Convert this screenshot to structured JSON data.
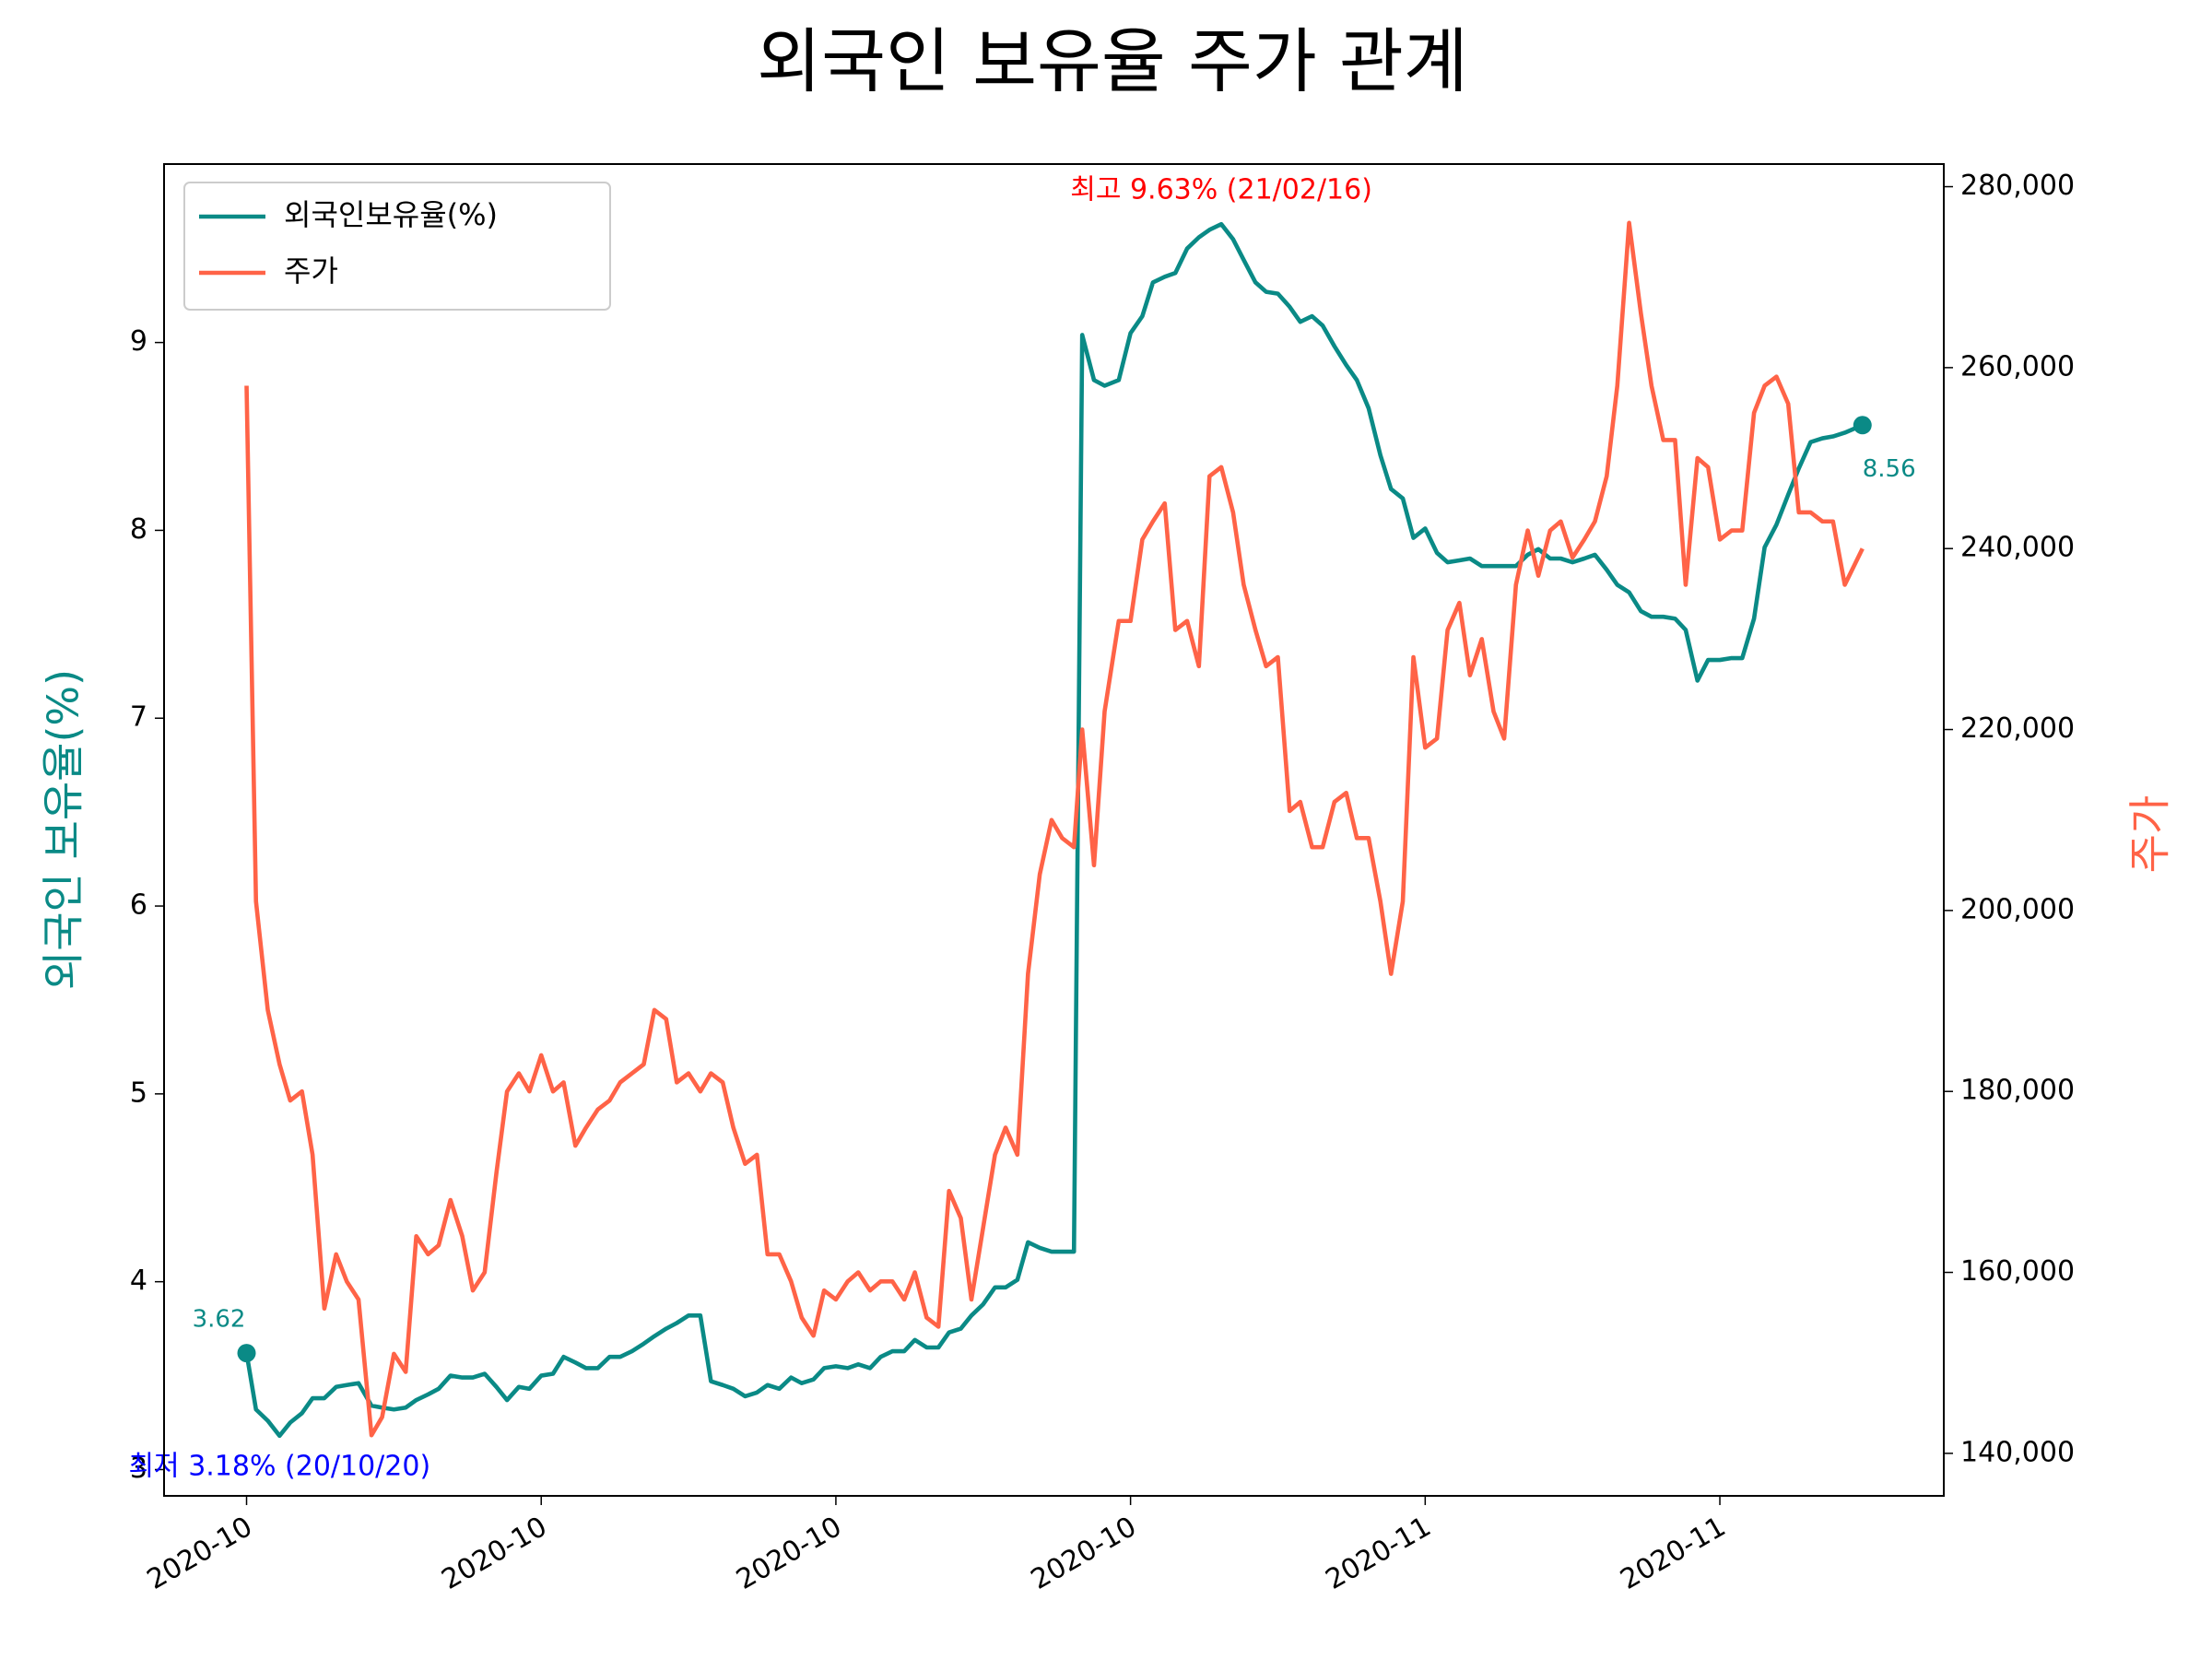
{
  "chart_data": {
    "type": "line",
    "title": "외국인 보유율 주가 관계",
    "ylabel": "외국인 보유율(%)",
    "y2label": "주가",
    "legend": "upper left",
    "x": [
      0,
      0.8,
      1.8,
      2.8,
      3.7,
      4.7,
      5.6,
      6.6,
      7.6,
      8.5,
      9.5,
      10.6,
      11.5,
      12.5,
      13.5,
      14.4,
      15.4,
      16.3,
      17.3,
      18.3,
      19.2,
      20.2,
      21.2,
      22.1,
      23.1,
      24.0,
      25.0,
      26.0,
      26.9,
      27.9,
      28.8,
      29.8,
      30.8,
      31.7,
      32.7,
      33.7,
      34.6,
      35.6,
      36.5,
      37.5,
      38.5,
      39.4,
      40.4,
      41.3,
      42.3,
      43.3,
      44.2,
      45.2,
      46.2,
      47.1,
      48.1,
      49.0,
      50.0,
      51.0,
      51.9,
      52.9,
      53.8,
      54.8,
      55.8,
      56.7,
      57.7,
      58.7,
      59.6,
      60.6,
      61.5,
      62.5,
      63.5,
      64.4,
      65.4,
      66.3,
      67.3,
      68.3,
      69.2,
      70.2,
      70.9,
      71.9,
      72.8,
      74.0,
      75.0,
      76.0,
      76.9,
      77.9,
      78.8,
      79.8,
      80.8,
      81.7,
      82.7,
      83.7,
      84.6,
      85.6,
      86.5,
      87.5,
      88.5,
      89.4,
      90.4,
      91.3,
      92.3,
      93.3,
      94.2,
      95.2,
      96.2,
      97.1,
      98.1,
      99.0,
      100.0,
      101.0,
      101.9,
      102.9,
      103.8,
      104.8,
      105.8,
      106.7,
      107.7,
      108.7,
      109.6,
      110.6,
      111.5,
      112.5,
      113.5,
      114.4,
      115.4,
      116.3,
      117.3,
      118.3,
      119.2,
      120.2,
      121.2,
      122.1,
      123.1,
      124.0,
      125.0,
      126.0,
      126.9,
      127.9,
      128.8,
      129.8,
      130.8,
      131.7,
      132.7,
      133.7,
      134.6,
      135.6,
      137.1
    ],
    "series": [
      {
        "name": "외국인보유율(%)",
        "color": "#0a8a86",
        "axis": "y",
        "values": [
          3.62,
          3.32,
          3.26,
          3.18,
          3.25,
          3.3,
          3.38,
          3.38,
          3.44,
          3.45,
          3.46,
          3.34,
          3.33,
          3.32,
          3.33,
          3.37,
          3.4,
          3.43,
          3.5,
          3.49,
          3.49,
          3.51,
          3.44,
          3.37,
          3.44,
          3.43,
          3.5,
          3.51,
          3.6,
          3.57,
          3.54,
          3.54,
          3.6,
          3.6,
          3.63,
          3.67,
          3.71,
          3.75,
          3.78,
          3.82,
          3.82,
          3.47,
          3.45,
          3.43,
          3.39,
          3.41,
          3.45,
          3.43,
          3.49,
          3.46,
          3.48,
          3.54,
          3.55,
          3.54,
          3.56,
          3.54,
          3.6,
          3.63,
          3.63,
          3.69,
          3.65,
          3.65,
          3.73,
          3.75,
          3.82,
          3.88,
          3.97,
          3.97,
          4.01,
          4.21,
          4.18,
          4.16,
          4.16,
          4.16,
          9.04,
          8.8,
          8.77,
          8.8,
          9.05,
          9.14,
          9.32,
          9.35,
          9.37,
          9.5,
          9.56,
          9.6,
          9.63,
          9.55,
          9.44,
          9.32,
          9.27,
          9.26,
          9.19,
          9.11,
          9.14,
          9.09,
          8.98,
          8.88,
          8.8,
          8.65,
          8.4,
          8.22,
          8.17,
          7.96,
          8.01,
          7.88,
          7.83,
          7.84,
          7.85,
          7.81,
          7.81,
          7.81,
          7.81,
          7.87,
          7.9,
          7.85,
          7.85,
          7.83,
          7.85,
          7.87,
          7.79,
          7.71,
          7.67,
          7.57,
          7.54,
          7.54,
          7.53,
          7.47,
          7.2,
          7.31,
          7.31,
          7.32,
          7.32,
          7.53,
          7.91,
          8.03,
          8.19,
          8.33,
          8.47,
          8.49,
          8.5,
          8.52,
          8.56
        ]
      },
      {
        "name": "주가",
        "color": "#ff6347",
        "axis": "y2",
        "values": [
          258000,
          201000,
          189000,
          183000,
          179000,
          180000,
          173000,
          156000,
          162000,
          159000,
          157000,
          142000,
          144000,
          151000,
          149000,
          164000,
          162000,
          163000,
          168000,
          164000,
          158000,
          160000,
          171000,
          180000,
          182000,
          180000,
          184000,
          180000,
          181000,
          174000,
          176000,
          178000,
          179000,
          181000,
          182000,
          183000,
          189000,
          188000,
          181000,
          182000,
          180000,
          182000,
          181000,
          176000,
          172000,
          173000,
          162000,
          162000,
          159000,
          155000,
          153000,
          158000,
          157000,
          159000,
          160000,
          158000,
          159000,
          159000,
          157000,
          160000,
          155000,
          154000,
          169000,
          166000,
          157000,
          165000,
          173000,
          176000,
          173000,
          193000,
          204000,
          210000,
          208000,
          207000,
          220000,
          205000,
          222000,
          232000,
          232000,
          241000,
          243000,
          245000,
          231000,
          232000,
          227000,
          248000,
          249000,
          244000,
          236000,
          231000,
          227000,
          228000,
          211000,
          212000,
          207000,
          207000,
          212000,
          213000,
          208000,
          208000,
          201000,
          193000,
          201000,
          228000,
          218000,
          219000,
          231000,
          234000,
          226000,
          230000,
          222000,
          219000,
          236000,
          242000,
          237000,
          242000,
          243000,
          239000,
          241000,
          243000,
          248000,
          258000,
          276000,
          266000,
          258000,
          252000,
          252000,
          236000,
          250000,
          249000,
          241000,
          242000,
          242000,
          255000,
          258000,
          259000,
          256000,
          244000,
          244000,
          243000,
          243000,
          236000,
          240000
        ]
      }
    ],
    "annotations": [
      {
        "text": "최고 9.63% (21/02/16)",
        "color": "#ff0000"
      },
      {
        "text": "최저 3.18% (20/10/20)",
        "color": "#0000ff"
      }
    ],
    "xlim": [
      -7,
      144
    ],
    "xticks": [
      {
        "value": 0,
        "label": "2020-10"
      },
      {
        "value": 25,
        "label": "2020-10"
      },
      {
        "value": 50,
        "label": "2020-10"
      },
      {
        "value": 75,
        "label": "2020-10"
      },
      {
        "value": 100,
        "label": "2020-11"
      },
      {
        "value": 125,
        "label": "2020-11"
      }
    ],
    "ylim": [
      2.86,
      9.95
    ],
    "yticks": [
      3,
      4,
      5,
      6,
      7,
      8,
      9
    ],
    "y2lim": [
      135300,
      282500
    ],
    "y2ticks": [
      {
        "value": 140000,
        "label": "140,000"
      },
      {
        "value": 160000,
        "label": "160,000"
      },
      {
        "value": 180000,
        "label": "180,000"
      },
      {
        "value": 200000,
        "label": "200,000"
      },
      {
        "value": 220000,
        "label": "220,000"
      },
      {
        "value": 240000,
        "label": "240,000"
      },
      {
        "value": 260000,
        "label": "260,000"
      },
      {
        "value": 280000,
        "label": "280,000"
      }
    ]
  }
}
